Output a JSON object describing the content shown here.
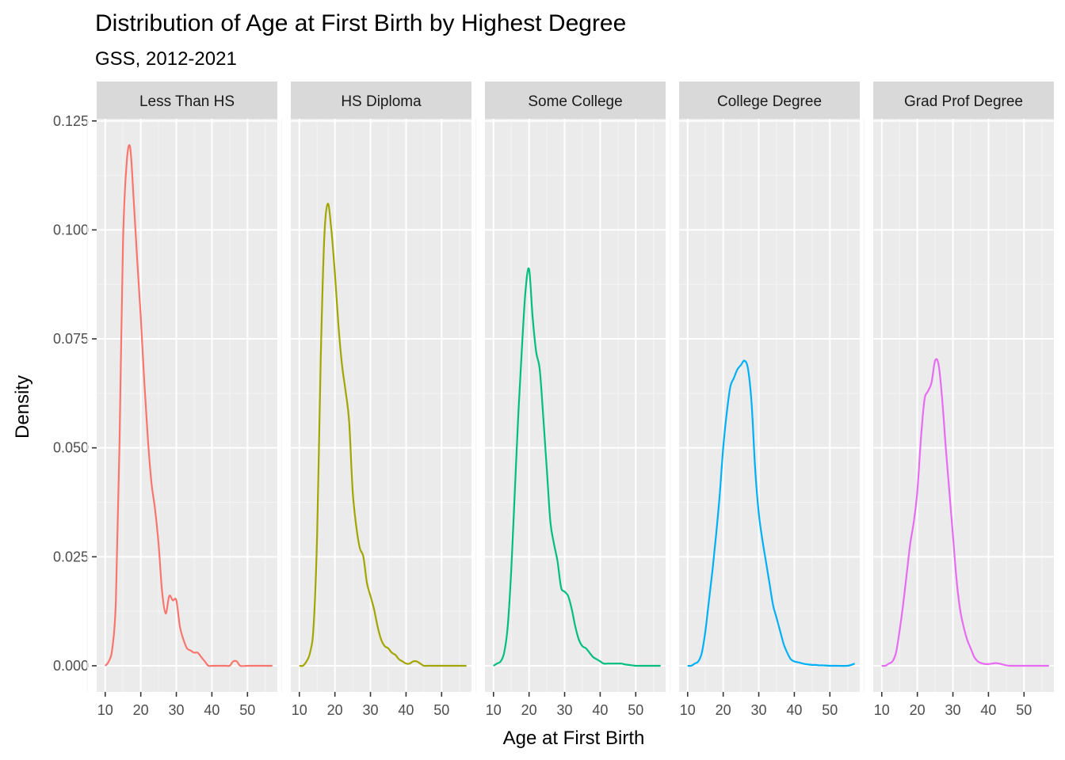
{
  "chart_data": {
    "type": "line",
    "title": "Distribution of Age at First Birth by Highest Degree",
    "subtitle": "GSS, 2012-2021",
    "xlabel": "Age at First Birth",
    "ylabel": "Density",
    "xlim": [
      7.6,
      58.4
    ],
    "ylim": [
      -0.006,
      0.1255
    ],
    "xticks": [
      10,
      20,
      30,
      40,
      50
    ],
    "yticks": [
      0.0,
      0.025,
      0.05,
      0.075,
      0.1,
      0.125
    ],
    "ytick_labels": [
      "0.000",
      "0.025",
      "0.050",
      "0.075",
      "0.100",
      "0.125"
    ],
    "grid": true,
    "legend": "none",
    "facets": [
      {
        "name": "Less Than HS",
        "color": "#F8766D",
        "x": [
          10,
          11,
          12,
          13,
          14,
          15,
          16,
          17,
          18,
          19,
          20,
          21,
          22,
          23,
          24,
          25,
          26,
          27,
          28,
          29,
          30,
          31,
          32,
          33,
          34,
          35,
          36,
          37,
          38,
          39,
          40,
          41,
          42,
          43,
          44,
          45,
          46,
          47,
          48,
          50,
          52,
          55,
          57
        ],
        "y": [
          0.0,
          0.001,
          0.004,
          0.015,
          0.05,
          0.097,
          0.115,
          0.119,
          0.107,
          0.093,
          0.08,
          0.065,
          0.052,
          0.042,
          0.036,
          0.028,
          0.017,
          0.012,
          0.016,
          0.015,
          0.015,
          0.009,
          0.006,
          0.004,
          0.0035,
          0.003,
          0.003,
          0.002,
          0.001,
          0.0,
          0.0,
          0.0,
          0.0,
          0.0,
          0.0,
          0.0,
          0.001,
          0.001,
          0.0,
          0.0,
          0.0,
          0.0,
          0.0
        ]
      },
      {
        "name": "HS Diploma",
        "color": "#A3A500",
        "x": [
          10,
          11,
          12,
          13,
          14,
          15,
          16,
          17,
          18,
          19,
          20,
          21,
          22,
          23,
          24,
          25,
          26,
          27,
          28,
          29,
          30,
          31,
          32,
          33,
          34,
          35,
          36,
          37,
          38,
          39,
          40,
          41,
          42,
          43,
          44,
          45,
          46,
          47,
          48,
          50,
          52,
          55,
          57
        ],
        "y": [
          0.0,
          0.0,
          0.001,
          0.003,
          0.009,
          0.03,
          0.07,
          0.098,
          0.106,
          0.1,
          0.09,
          0.078,
          0.069,
          0.063,
          0.056,
          0.04,
          0.032,
          0.027,
          0.025,
          0.019,
          0.016,
          0.013,
          0.009,
          0.006,
          0.0045,
          0.004,
          0.003,
          0.0025,
          0.0015,
          0.001,
          0.0005,
          0.0005,
          0.001,
          0.001,
          0.0005,
          0.0,
          0.0,
          0.0,
          0.0,
          0.0,
          0.0,
          0.0,
          0.0
        ]
      },
      {
        "name": "Some College",
        "color": "#00BF7D",
        "x": [
          10,
          11,
          12,
          13,
          14,
          15,
          16,
          17,
          18,
          19,
          20,
          21,
          22,
          23,
          24,
          25,
          26,
          27,
          28,
          29,
          30,
          31,
          32,
          33,
          34,
          35,
          36,
          37,
          38,
          39,
          40,
          41,
          42,
          43,
          44,
          45,
          46,
          47,
          48,
          50,
          52,
          55,
          57
        ],
        "y": [
          0.0,
          0.0005,
          0.001,
          0.003,
          0.009,
          0.022,
          0.04,
          0.058,
          0.073,
          0.086,
          0.091,
          0.08,
          0.072,
          0.068,
          0.057,
          0.045,
          0.033,
          0.028,
          0.024,
          0.018,
          0.017,
          0.016,
          0.013,
          0.009,
          0.006,
          0.0045,
          0.004,
          0.003,
          0.002,
          0.0015,
          0.001,
          0.0005,
          0.0005,
          0.0005,
          0.0005,
          0.0005,
          0.0005,
          0.0003,
          0.0002,
          0.0,
          0.0,
          0.0,
          0.0
        ]
      },
      {
        "name": "College Degree",
        "color": "#00B0F6",
        "x": [
          10,
          11,
          12,
          13,
          14,
          15,
          16,
          17,
          18,
          19,
          20,
          21,
          22,
          23,
          24,
          25,
          26,
          27,
          28,
          29,
          30,
          31,
          32,
          33,
          34,
          35,
          36,
          37,
          38,
          39,
          40,
          41,
          42,
          43,
          44,
          45,
          46,
          47,
          48,
          50,
          52,
          55,
          57
        ],
        "y": [
          0.0,
          0.0,
          0.0005,
          0.001,
          0.003,
          0.008,
          0.015,
          0.022,
          0.03,
          0.039,
          0.05,
          0.058,
          0.064,
          0.066,
          0.068,
          0.069,
          0.07,
          0.068,
          0.06,
          0.045,
          0.035,
          0.029,
          0.024,
          0.019,
          0.014,
          0.011,
          0.008,
          0.005,
          0.003,
          0.0015,
          0.001,
          0.0008,
          0.0006,
          0.0004,
          0.0003,
          0.0002,
          0.0002,
          0.0001,
          0.0001,
          0.0,
          0.0,
          0.0,
          0.0005
        ]
      },
      {
        "name": "Grad Prof Degree",
        "color": "#E76BF3",
        "x": [
          10,
          11,
          12,
          13,
          14,
          15,
          16,
          17,
          18,
          19,
          20,
          21,
          22,
          23,
          24,
          25,
          26,
          27,
          28,
          29,
          30,
          31,
          32,
          33,
          34,
          35,
          36,
          37,
          38,
          39,
          40,
          41,
          42,
          43,
          44,
          45,
          46,
          47,
          48,
          50,
          52,
          55,
          57
        ],
        "y": [
          0.0,
          0.0,
          0.0005,
          0.001,
          0.003,
          0.008,
          0.014,
          0.021,
          0.028,
          0.033,
          0.04,
          0.052,
          0.061,
          0.063,
          0.065,
          0.07,
          0.069,
          0.061,
          0.05,
          0.04,
          0.03,
          0.02,
          0.013,
          0.009,
          0.006,
          0.004,
          0.002,
          0.001,
          0.0006,
          0.0004,
          0.0004,
          0.0005,
          0.0006,
          0.0005,
          0.0003,
          0.0001,
          0.0,
          0.0,
          0.0,
          0.0,
          0.0,
          0.0,
          0.0
        ]
      }
    ]
  }
}
